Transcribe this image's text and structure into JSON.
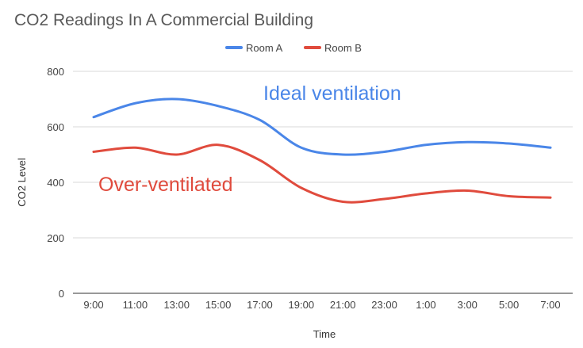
{
  "chart_data": {
    "type": "line",
    "title": "CO2 Readings In A Commercial Building",
    "xlabel": "Time",
    "ylabel": "CO2 Level",
    "categories": [
      "9:00",
      "11:00",
      "13:00",
      "15:00",
      "17:00",
      "19:00",
      "21:00",
      "23:00",
      "1:00",
      "3:00",
      "5:00",
      "7:00"
    ],
    "ylim": [
      0,
      800
    ],
    "yticks": [
      0,
      200,
      400,
      600,
      800
    ],
    "grid": true,
    "legend_position": "top",
    "series": [
      {
        "name": "Room A",
        "color": "#4a86e8",
        "values": [
          635,
          685,
          700,
          675,
          625,
          525,
          500,
          510,
          535,
          545,
          540,
          525
        ]
      },
      {
        "name": "Room B",
        "color": "#e04b3d",
        "values": [
          510,
          525,
          500,
          535,
          480,
          380,
          330,
          340,
          360,
          370,
          350,
          345
        ]
      }
    ],
    "annotations": [
      {
        "text": "Ideal ventilation",
        "color": "#4a86e8",
        "x_category": "17:00",
        "y": 725
      },
      {
        "text": "Over-ventilated",
        "color": "#e04b3d",
        "x_category": "9:00",
        "y": 395
      }
    ]
  }
}
